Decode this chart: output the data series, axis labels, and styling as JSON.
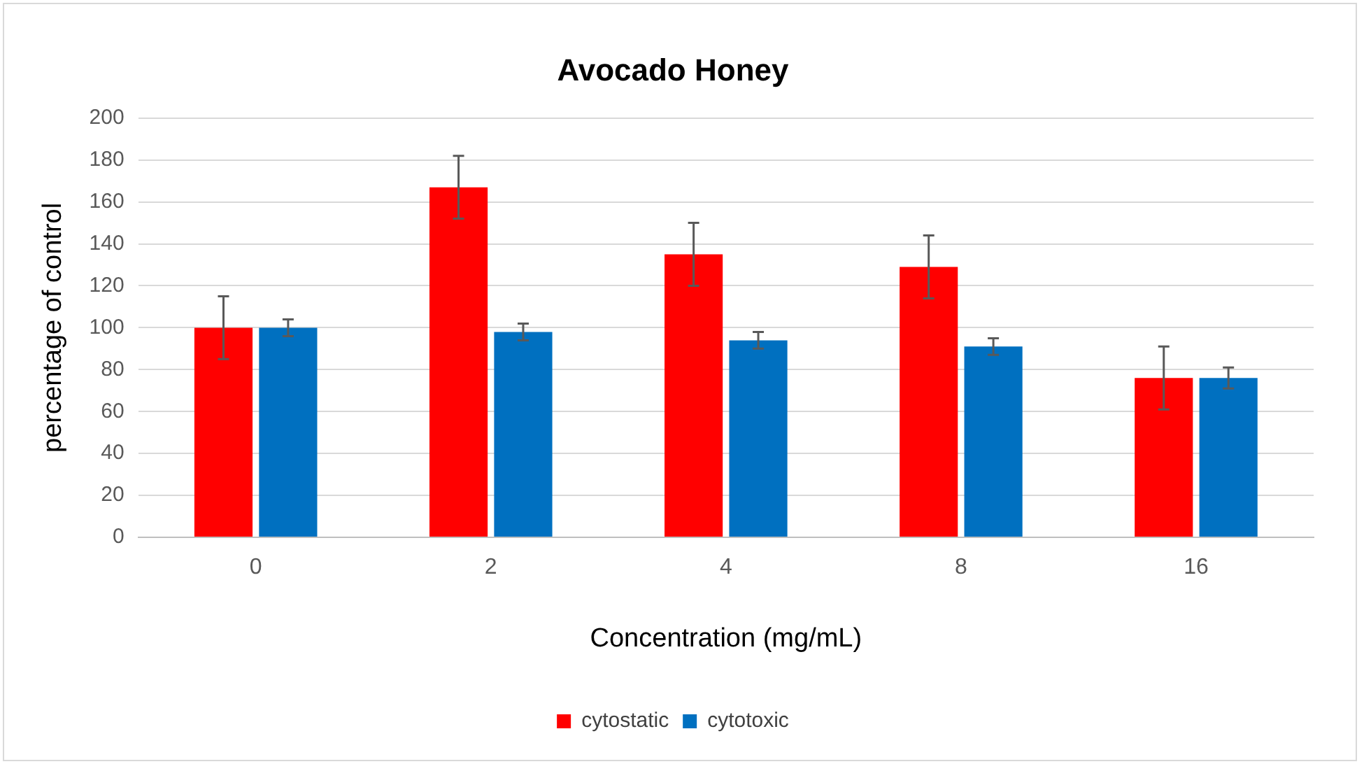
{
  "chart_data": {
    "type": "bar",
    "title": "Avocado Honey",
    "xlabel": "Concentration (mg/mL)",
    "ylabel": "percentage of control",
    "categories": [
      "0",
      "2",
      "4",
      "8",
      "16"
    ],
    "series": [
      {
        "name": "cytostatic",
        "color": "#ff0000",
        "values": [
          100,
          167,
          135,
          129,
          76
        ],
        "errors": [
          15,
          15,
          15,
          15,
          15
        ]
      },
      {
        "name": "cytotoxic",
        "color": "#0070c0",
        "values": [
          100,
          98,
          94,
          91,
          76
        ],
        "errors": [
          4,
          4,
          4,
          4,
          5
        ]
      }
    ],
    "ylim": [
      0,
      200
    ],
    "yticks": [
      0,
      20,
      40,
      60,
      80,
      100,
      120,
      140,
      160,
      180,
      200
    ],
    "grid": "y",
    "legend": "bottom"
  }
}
